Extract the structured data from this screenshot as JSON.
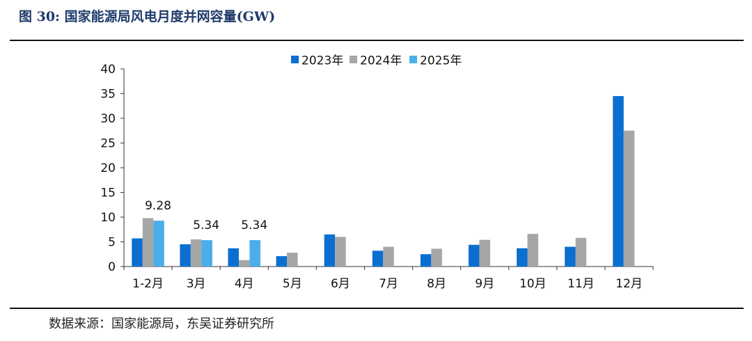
{
  "figure": {
    "title": "图 30:  国家能源局风电月度并网容量(GW)",
    "source": "数据来源：国家能源局，东吴证券研究所"
  },
  "chart_data": {
    "type": "bar",
    "title": "",
    "xlabel": "",
    "ylabel": "",
    "ylim": [
      0,
      40
    ],
    "yticks": [
      0,
      5,
      10,
      15,
      20,
      25,
      30,
      35,
      40
    ],
    "grid": false,
    "legend_position": "top",
    "categories": [
      "1-2月",
      "3月",
      "4月",
      "5月",
      "6月",
      "7月",
      "8月",
      "9月",
      "10月",
      "11月",
      "12月"
    ],
    "series": [
      {
        "name": "2023年",
        "color": "#0b6fd0",
        "values": [
          5.7,
          4.5,
          3.7,
          2.1,
          6.5,
          3.2,
          2.5,
          4.4,
          3.7,
          4.0,
          34.5
        ]
      },
      {
        "name": "2024年",
        "color": "#a6a6a6",
        "values": [
          9.8,
          5.5,
          1.3,
          2.8,
          6.0,
          4.0,
          3.6,
          5.4,
          6.6,
          5.8,
          27.5
        ]
      },
      {
        "name": "2025年",
        "color": "#4aaee8",
        "values": [
          9.28,
          5.34,
          5.34,
          null,
          null,
          null,
          null,
          null,
          null,
          null,
          null
        ]
      }
    ],
    "data_labels": [
      {
        "series": 2,
        "index": 0,
        "text": "9.28"
      },
      {
        "series": 2,
        "index": 1,
        "text": "5.34"
      },
      {
        "series": 2,
        "index": 2,
        "text": "5.34"
      }
    ]
  }
}
